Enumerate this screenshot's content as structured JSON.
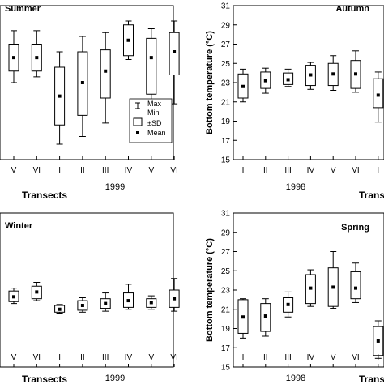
{
  "chart_data": [
    {
      "panel": "summer",
      "type": "box",
      "title": "Summer",
      "xlabel": "Transects",
      "ylabel": "",
      "year_label": "1999",
      "categories": [
        "V",
        "VI",
        "I",
        "II",
        "III",
        "IV",
        "V",
        "VI"
      ],
      "stats": [
        {
          "min": 27.0,
          "q1": 27.6,
          "mean": 28.3,
          "q3": 29.0,
          "max": 29.7
        },
        {
          "min": 27.3,
          "q1": 27.6,
          "mean": 28.3,
          "q3": 29.0,
          "max": 29.7
        },
        {
          "min": 23.8,
          "q1": 24.8,
          "mean": 26.3,
          "q3": 27.8,
          "max": 28.6
        },
        {
          "min": 24.2,
          "q1": 25.3,
          "mean": 27.0,
          "q3": 28.6,
          "max": 29.4
        },
        {
          "min": 24.9,
          "q1": 26.2,
          "mean": 27.6,
          "q3": 28.7,
          "max": 29.6
        },
        {
          "min": 28.2,
          "q1": 28.4,
          "mean": 29.2,
          "q3": 30.0,
          "max": 30.2
        },
        {
          "min": 25.7,
          "q1": 26.4,
          "mean": 28.3,
          "q3": 29.3,
          "max": 29.8
        },
        {
          "min": 25.9,
          "q1": 27.4,
          "mean": 28.6,
          "q3": 29.6,
          "max": 30.2
        }
      ],
      "ylim": [
        23,
        31
      ],
      "legend": {
        "position": "bottom-right",
        "max": "Max",
        "min": "Min",
        "sd": "±SD",
        "mean": "Mean"
      }
    },
    {
      "panel": "autumn",
      "type": "box",
      "title": "Autumn",
      "xlabel": "Transects",
      "ylabel": "Bottom temperature (°C)",
      "year_label": "1998",
      "categories": [
        "I",
        "II",
        "III",
        "IV",
        "V",
        "VI",
        "I"
      ],
      "yticks": [
        15,
        17,
        19,
        21,
        23,
        25,
        27,
        29,
        31
      ],
      "ylim": [
        15,
        31
      ],
      "stats": [
        {
          "min": 21.0,
          "q1": 21.4,
          "mean": 22.6,
          "q3": 23.9,
          "max": 24.4
        },
        {
          "min": 21.9,
          "q1": 22.4,
          "mean": 23.2,
          "q3": 24.1,
          "max": 24.5
        },
        {
          "min": 22.6,
          "q1": 22.8,
          "mean": 23.3,
          "q3": 24.0,
          "max": 24.4
        },
        {
          "min": 22.3,
          "q1": 22.7,
          "mean": 23.8,
          "q3": 24.8,
          "max": 25.1
        },
        {
          "min": 22.2,
          "q1": 22.7,
          "mean": 23.9,
          "q3": 25.0,
          "max": 25.8
        },
        {
          "min": 22.0,
          "q1": 22.4,
          "mean": 23.9,
          "q3": 25.3,
          "max": 26.3
        },
        {
          "min": 18.9,
          "q1": 20.4,
          "mean": 21.7,
          "q3": 23.4,
          "max": 24.1
        }
      ]
    },
    {
      "panel": "winter",
      "type": "box",
      "title": "Winter",
      "xlabel": "Transects",
      "ylabel": "",
      "year_label": "1999",
      "categories": [
        "V",
        "VI",
        "I",
        "II",
        "III",
        "IV",
        "V",
        "VI"
      ],
      "ylim": [
        15,
        31
      ],
      "stats": [
        {
          "min": 21.6,
          "q1": 21.8,
          "mean": 22.3,
          "q3": 22.9,
          "max": 23.2
        },
        {
          "min": 21.9,
          "q1": 22.1,
          "mean": 22.8,
          "q3": 23.4,
          "max": 23.8
        },
        {
          "min": 20.6,
          "q1": 20.7,
          "mean": 21.0,
          "q3": 21.4,
          "max": 21.5
        },
        {
          "min": 20.7,
          "q1": 20.9,
          "mean": 21.4,
          "q3": 21.9,
          "max": 22.2
        },
        {
          "min": 20.8,
          "q1": 21.1,
          "mean": 21.6,
          "q3": 22.1,
          "max": 22.7
        },
        {
          "min": 21.0,
          "q1": 21.2,
          "mean": 21.9,
          "q3": 22.7,
          "max": 23.6
        },
        {
          "min": 21.0,
          "q1": 21.2,
          "mean": 21.7,
          "q3": 22.1,
          "max": 22.4
        },
        {
          "min": 20.8,
          "q1": 21.2,
          "mean": 22.1,
          "q3": 23.0,
          "max": 24.2
        }
      ]
    },
    {
      "panel": "spring",
      "type": "box",
      "title": "Spring",
      "xlabel": "Transects",
      "ylabel": "Bottom temperature (°C)",
      "year_label": "1998",
      "categories": [
        "I",
        "II",
        "III",
        "IV",
        "V",
        "VI",
        "I"
      ],
      "yticks": [
        15,
        17,
        19,
        21,
        23,
        25,
        27,
        29,
        31
      ],
      "ylim": [
        15,
        31
      ],
      "stats": [
        {
          "min": 18.0,
          "q1": 18.5,
          "mean": 20.2,
          "q3": 22.0,
          "max": 22.1
        },
        {
          "min": 18.2,
          "q1": 18.7,
          "mean": 20.3,
          "q3": 21.6,
          "max": 22.1
        },
        {
          "min": 20.2,
          "q1": 20.7,
          "mean": 21.5,
          "q3": 22.2,
          "max": 22.8
        },
        {
          "min": 21.3,
          "q1": 21.6,
          "mean": 23.2,
          "q3": 24.6,
          "max": 25.1
        },
        {
          "min": 21.1,
          "q1": 21.3,
          "mean": 23.3,
          "q3": 25.3,
          "max": 27.0
        },
        {
          "min": 21.7,
          "q1": 22.1,
          "mean": 23.2,
          "q3": 24.9,
          "max": 25.8
        },
        {
          "min": 15.9,
          "q1": 16.2,
          "mean": 17.7,
          "q3": 19.2,
          "max": 19.8
        }
      ]
    }
  ]
}
